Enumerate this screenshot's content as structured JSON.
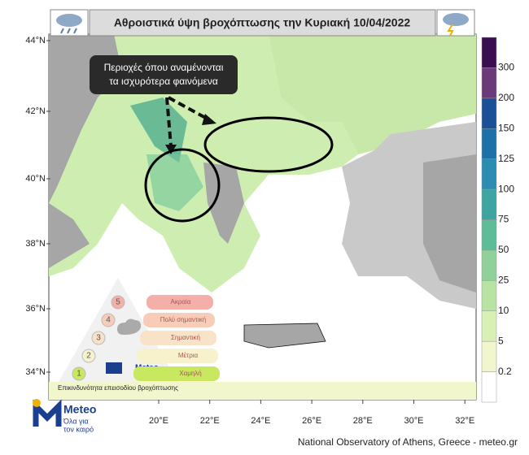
{
  "title": "Αθροιστικά ύψη βροχόπτωσης την Κυριακή 10/04/2022",
  "callout": [
    "Περιοχές όπου αναμένονται",
    "τα ισχυρότερα φαινόμενα"
  ],
  "lat_labels": [
    "44°N",
    "42°N",
    "40°N",
    "38°N",
    "36°N",
    "34°N"
  ],
  "lon_labels": [
    "20°E",
    "22°E",
    "24°E",
    "26°E",
    "28°E",
    "30°E",
    "32°E"
  ],
  "colorbar": {
    "labels": [
      "0.2",
      "5",
      "10",
      "25",
      "50",
      "75",
      "100",
      "125",
      "150",
      "200",
      "300"
    ],
    "colors": [
      "#ffffff",
      "#f2f6cc",
      "#d9f0b4",
      "#b8e3a2",
      "#90d09b",
      "#5ebd98",
      "#3ca5a2",
      "#2b8db2",
      "#2070a8",
      "#1b4f96",
      "#6b3a78",
      "#3a0f52"
    ]
  },
  "risk_legend": {
    "levels": [
      {
        "number": "5",
        "label": "Ακραία",
        "color": "#f4b0a8"
      },
      {
        "number": "4",
        "label": "Πολύ σημαντική",
        "color": "#f7cdb8"
      },
      {
        "number": "3",
        "label": "Σημαντική",
        "color": "#f8e2c8"
      },
      {
        "number": "2",
        "label": "Μέτρια",
        "color": "#f8f2cc"
      },
      {
        "number": "1",
        "label": "Χαμηλή",
        "color": "#c8e860"
      }
    ],
    "brand": "Meteo",
    "caption": "Επικινδυνότητα επεισοδίου βροχόπτωσης"
  },
  "logo": {
    "name": "Meteo",
    "tagline": [
      "Όλα για",
      "τον καιρό"
    ]
  },
  "footer": "National Observatory of Athens, Greece - meteo.gr"
}
